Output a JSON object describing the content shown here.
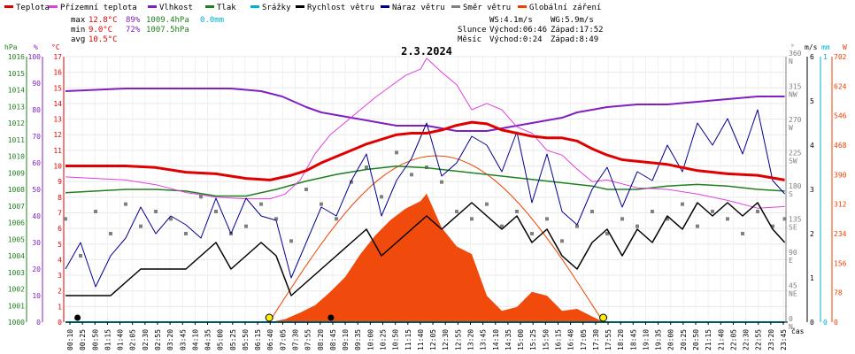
{
  "legend": [
    {
      "label": "Teplota",
      "color": "#e00000"
    },
    {
      "label": "Přízemní teplota",
      "color": "#e040e0"
    },
    {
      "label": "Vlhkost",
      "color": "#8020c0"
    },
    {
      "label": "Tlak",
      "color": "#208020"
    },
    {
      "label": "Srážky",
      "color": "#00b0d0"
    },
    {
      "label": "Rychlost větru",
      "color": "#000000"
    },
    {
      "label": "Náraz větru",
      "color": "#000090"
    },
    {
      "label": "Směr větru",
      "color": "#808080"
    },
    {
      "label": "Globální záření",
      "color": "#f04000"
    }
  ],
  "stats": {
    "max_label": "max",
    "max_temp": "12.8°C",
    "max_hum": "89%",
    "max_press": "1009.4hPa",
    "max_rain": "0.0mm",
    "min_label": "min",
    "min_temp": "9.0°C",
    "min_hum": "72%",
    "min_press": "1007.5hPa",
    "avg_label": "avg",
    "avg_temp": "10.5°C"
  },
  "wind_info": {
    "ws": "WS:4.1m/s",
    "wg": "WG:5.9m/s"
  },
  "sun": {
    "label": "Slunce",
    "rise": "Východ:06:46",
    "set": "Západ:17:52"
  },
  "moon": {
    "label": "Měsíc",
    "rise": "Východ:0:24",
    "set": "Západ:8:49"
  },
  "date_title": "2.3.2024",
  "axis_units": {
    "hpa": "hPa",
    "pct": "%",
    "degc": "°C",
    "deg": "°",
    "ms": "m/s",
    "mm": "mm",
    "w": "W",
    "cas": "čas"
  },
  "chart_data": {
    "type": "line",
    "title": "2.3.2024",
    "x_ticks": [
      "00:10",
      "00:25",
      "00:50",
      "01:15",
      "01:40",
      "02:05",
      "02:30",
      "02:55",
      "03:20",
      "03:45",
      "04:10",
      "04:35",
      "05:00",
      "05:25",
      "05:50",
      "06:15",
      "06:40",
      "07:05",
      "07:30",
      "07:55",
      "08:20",
      "08:45",
      "09:10",
      "09:35",
      "10:00",
      "10:25",
      "10:50",
      "11:15",
      "11:40",
      "12:05",
      "12:30",
      "12:55",
      "13:20",
      "13:45",
      "14:10",
      "14:35",
      "15:00",
      "15:25",
      "15:50",
      "16:15",
      "16:40",
      "17:05",
      "17:30",
      "17:55",
      "18:20",
      "18:45",
      "19:10",
      "19:35",
      "20:00",
      "20:25",
      "20:50",
      "21:15",
      "21:40",
      "22:05",
      "22:30",
      "22:55",
      "23:20",
      "23:45"
    ],
    "axes": {
      "pressure_hPa": {
        "min": 1000,
        "max": 1016,
        "ticks": [
          "1000",
          "1001",
          "1002",
          "1003",
          "1004",
          "1005",
          "1006",
          "1007",
          "1008",
          "1009",
          "1010",
          "1011",
          "1012",
          "1013",
          "1014",
          "1015",
          "1016"
        ]
      },
      "humidity_pct": {
        "min": 0,
        "max": 100,
        "ticks": [
          "0",
          "10",
          "20",
          "30",
          "40",
          "50",
          "60",
          "70",
          "80",
          "90",
          "100"
        ]
      },
      "temperature_C": {
        "min": 0,
        "max": 17,
        "ticks": [
          "0",
          "1",
          "2",
          "3",
          "4",
          "5",
          "6",
          "7",
          "8",
          "9",
          "10",
          "11",
          "12",
          "13",
          "14",
          "15",
          "16",
          "17"
        ]
      },
      "wind_dir_deg": {
        "min": 0,
        "max": 360,
        "ticks": [
          "0",
          "45",
          "90",
          "135",
          "180",
          "225",
          "270",
          "315",
          "360"
        ],
        "labels": [
          "N",
          "NE",
          "E",
          "SE",
          "S",
          "SW",
          "W",
          "NW",
          "N"
        ]
      },
      "wind_speed_ms": {
        "min": 0,
        "max": 6,
        "ticks": [
          "0",
          "1",
          "2",
          "3",
          "4",
          "5",
          "6"
        ]
      },
      "rain_mm": {
        "min": 0,
        "max": 1,
        "ticks": [
          "0",
          "1"
        ]
      },
      "radiation_W": {
        "min": 0,
        "max": 702,
        "ticks": [
          "0",
          "78",
          "156",
          "234",
          "312",
          "390",
          "468",
          "546",
          "624",
          "702"
        ]
      }
    },
    "series": [
      {
        "name": "Teplota",
        "unit": "°C",
        "x_hours": [
          0,
          1,
          2,
          3,
          4,
          5,
          6,
          6.8,
          7.5,
          8,
          8.5,
          9,
          9.5,
          10,
          10.5,
          11,
          11.5,
          12,
          12.5,
          13,
          13.5,
          14,
          14.5,
          15,
          15.5,
          16,
          16.5,
          17,
          17.5,
          18,
          18.5,
          19,
          20,
          21,
          22,
          23,
          23.9
        ],
        "values": [
          10.0,
          10.0,
          10.0,
          9.9,
          9.6,
          9.5,
          9.2,
          9.1,
          9.4,
          9.7,
          10.2,
          10.6,
          11.0,
          11.4,
          11.7,
          12.0,
          12.1,
          12.1,
          12.3,
          12.6,
          12.8,
          12.7,
          12.3,
          12.1,
          11.9,
          11.8,
          11.8,
          11.6,
          11.1,
          10.7,
          10.4,
          10.3,
          10.1,
          9.7,
          9.5,
          9.4,
          9.1
        ]
      },
      {
        "name": "Přízemní teplota",
        "unit": "°C",
        "x_hours": [
          0,
          1,
          2,
          3,
          4,
          5,
          6,
          6.8,
          7.3,
          7.8,
          8.3,
          8.8,
          9.3,
          9.8,
          10.3,
          10.8,
          11.3,
          11.8,
          12.0,
          12.5,
          13,
          13.5,
          14,
          14.5,
          15,
          15.5,
          16,
          16.5,
          17,
          17.5,
          18,
          19,
          20,
          21,
          22,
          23,
          23.9
        ],
        "values": [
          9.3,
          9.2,
          9.1,
          8.8,
          8.3,
          8.0,
          7.9,
          7.9,
          8.2,
          9.1,
          10.8,
          12.0,
          12.8,
          13.6,
          14.4,
          15.1,
          15.8,
          16.2,
          16.9,
          16.0,
          15.2,
          13.6,
          14.0,
          13.6,
          12.5,
          12.1,
          11.0,
          10.7,
          9.8,
          9.0,
          9.1,
          8.6,
          8.5,
          8.2,
          7.8,
          7.3,
          7.4
        ]
      },
      {
        "name": "Vlhkost",
        "unit": "%",
        "x_hours": [
          0,
          2,
          4,
          5.5,
          6.5,
          7.2,
          8,
          8.5,
          9,
          9.5,
          10,
          10.5,
          11,
          11.5,
          12,
          12.5,
          13,
          13.5,
          14,
          14.5,
          15,
          15.5,
          16,
          16.5,
          17,
          17.5,
          18,
          19,
          20,
          21,
          22,
          23,
          23.9
        ],
        "values": [
          87,
          88,
          88,
          88,
          87,
          85,
          81,
          79,
          78,
          77,
          76,
          75,
          74,
          74,
          74,
          73,
          72,
          72,
          72,
          73,
          74,
          75,
          76,
          77,
          79,
          80,
          81,
          82,
          82,
          83,
          84,
          85,
          85
        ]
      },
      {
        "name": "Tlak",
        "unit": "hPa",
        "x_hours": [
          0,
          1,
          2,
          3,
          4,
          5,
          6,
          7,
          8,
          9,
          10,
          11,
          12,
          13,
          14,
          15,
          16,
          17,
          17.5,
          18,
          19,
          20,
          21,
          22,
          23,
          23.9
        ],
        "values": [
          1007.8,
          1007.9,
          1008.0,
          1008.0,
          1007.9,
          1007.6,
          1007.6,
          1008.0,
          1008.5,
          1008.9,
          1009.2,
          1009.4,
          1009.3,
          1009.1,
          1008.9,
          1008.7,
          1008.5,
          1008.3,
          1008.2,
          1008.0,
          1008.0,
          1008.2,
          1008.3,
          1008.2,
          1008.0,
          1007.9
        ]
      },
      {
        "name": "Rychlost větru",
        "unit": "m/s",
        "x_hours": [
          0,
          0.5,
          1,
          1.5,
          2,
          2.5,
          3,
          3.5,
          4,
          4.5,
          5,
          5.5,
          6,
          6.5,
          7,
          7.5,
          8,
          8.5,
          9,
          9.5,
          10,
          10.5,
          11,
          11.5,
          12,
          12.5,
          13,
          13.5,
          14,
          14.5,
          15,
          15.5,
          16,
          16.5,
          17,
          17.5,
          18,
          18.5,
          19,
          19.5,
          20,
          20.5,
          21,
          21.5,
          22,
          22.5,
          23,
          23.5,
          23.9
        ],
        "values": [
          0.6,
          0.6,
          0.6,
          0.6,
          0.9,
          1.2,
          1.2,
          1.2,
          1.2,
          1.5,
          1.8,
          1.2,
          1.5,
          1.8,
          1.5,
          0.6,
          0.9,
          1.2,
          1.5,
          1.8,
          2.1,
          1.5,
          1.8,
          2.1,
          2.4,
          2.1,
          2.4,
          2.7,
          2.4,
          2.1,
          2.4,
          1.8,
          2.1,
          1.5,
          1.2,
          1.8,
          2.1,
          1.5,
          2.1,
          1.8,
          2.4,
          2.1,
          2.7,
          2.4,
          2.7,
          2.4,
          2.7,
          2.1,
          1.8
        ]
      },
      {
        "name": "Náraz větru",
        "unit": "m/s",
        "x_hours": [
          0,
          0.5,
          1,
          1.5,
          2,
          2.5,
          3,
          3.5,
          4,
          4.5,
          5,
          5.5,
          6,
          6.5,
          7,
          7.5,
          8,
          8.5,
          9,
          9.5,
          10,
          10.5,
          11,
          11.5,
          12,
          12.5,
          13,
          13.5,
          14,
          14.5,
          15,
          15.5,
          16,
          16.5,
          17,
          17.5,
          18,
          18.5,
          19,
          19.5,
          20,
          20.5,
          21,
          21.5,
          22,
          22.5,
          23,
          23.5,
          23.9
        ],
        "values": [
          1.2,
          1.8,
          0.8,
          1.5,
          1.9,
          2.6,
          2.0,
          2.4,
          2.2,
          1.9,
          2.8,
          2.0,
          2.8,
          2.4,
          2.3,
          1.0,
          1.8,
          2.6,
          2.4,
          3.2,
          3.8,
          2.4,
          3.2,
          3.7,
          4.5,
          3.3,
          3.6,
          4.2,
          4.0,
          3.4,
          4.3,
          2.7,
          3.8,
          2.5,
          2.2,
          3.0,
          3.5,
          2.6,
          3.4,
          3.2,
          4.0,
          3.4,
          4.5,
          4.0,
          4.6,
          3.8,
          4.8,
          3.2,
          2.9
        ]
      },
      {
        "name": "Směr větru",
        "unit": "°",
        "x_hours": [
          0,
          0.5,
          1,
          1.5,
          2,
          2.5,
          3,
          3.5,
          4,
          4.5,
          5,
          5.5,
          6,
          6.5,
          7,
          7.5,
          8,
          8.5,
          9,
          9.5,
          10,
          10.5,
          11,
          11.5,
          12,
          12.5,
          13,
          13.5,
          14,
          14.5,
          15,
          15.5,
          16,
          16.5,
          17,
          17.5,
          18,
          18.5,
          19,
          19.5,
          20,
          20.5,
          21,
          21.5,
          22,
          22.5,
          23,
          23.5,
          23.9
        ],
        "values": [
          140,
          90,
          150,
          120,
          160,
          130,
          150,
          140,
          120,
          170,
          150,
          120,
          130,
          160,
          140,
          110,
          180,
          160,
          140,
          190,
          210,
          170,
          230,
          200,
          210,
          190,
          150,
          140,
          160,
          130,
          150,
          120,
          140,
          110,
          130,
          150,
          120,
          140,
          130,
          150,
          140,
          160,
          130,
          150,
          140,
          120,
          150,
          130,
          140
        ]
      },
      {
        "name": "Globální záření",
        "unit": "W",
        "x_hours": [
          6.8,
          7.3,
          7.8,
          8.3,
          8.8,
          9.3,
          9.8,
          10.3,
          10.8,
          11.3,
          11.8,
          12.0,
          12.5,
          13,
          13.5,
          14,
          14.5,
          15,
          15.5,
          16,
          16.5,
          17,
          17.5,
          17.9
        ],
        "values": [
          0,
          8,
          25,
          45,
          80,
          120,
          180,
          230,
          270,
          300,
          320,
          340,
          250,
          200,
          180,
          70,
          30,
          40,
          80,
          70,
          30,
          35,
          15,
          0
        ]
      },
      {
        "name": "Srážky",
        "unit": "mm",
        "x_hours": [
          0,
          23.9
        ],
        "values": [
          0,
          0
        ]
      }
    ],
    "theoretical_radiation_max": 440,
    "sunrise_hour": 6.77,
    "sunset_hour": 17.87,
    "moonrise_hour": 0.4,
    "moonset_hour": 8.82
  }
}
